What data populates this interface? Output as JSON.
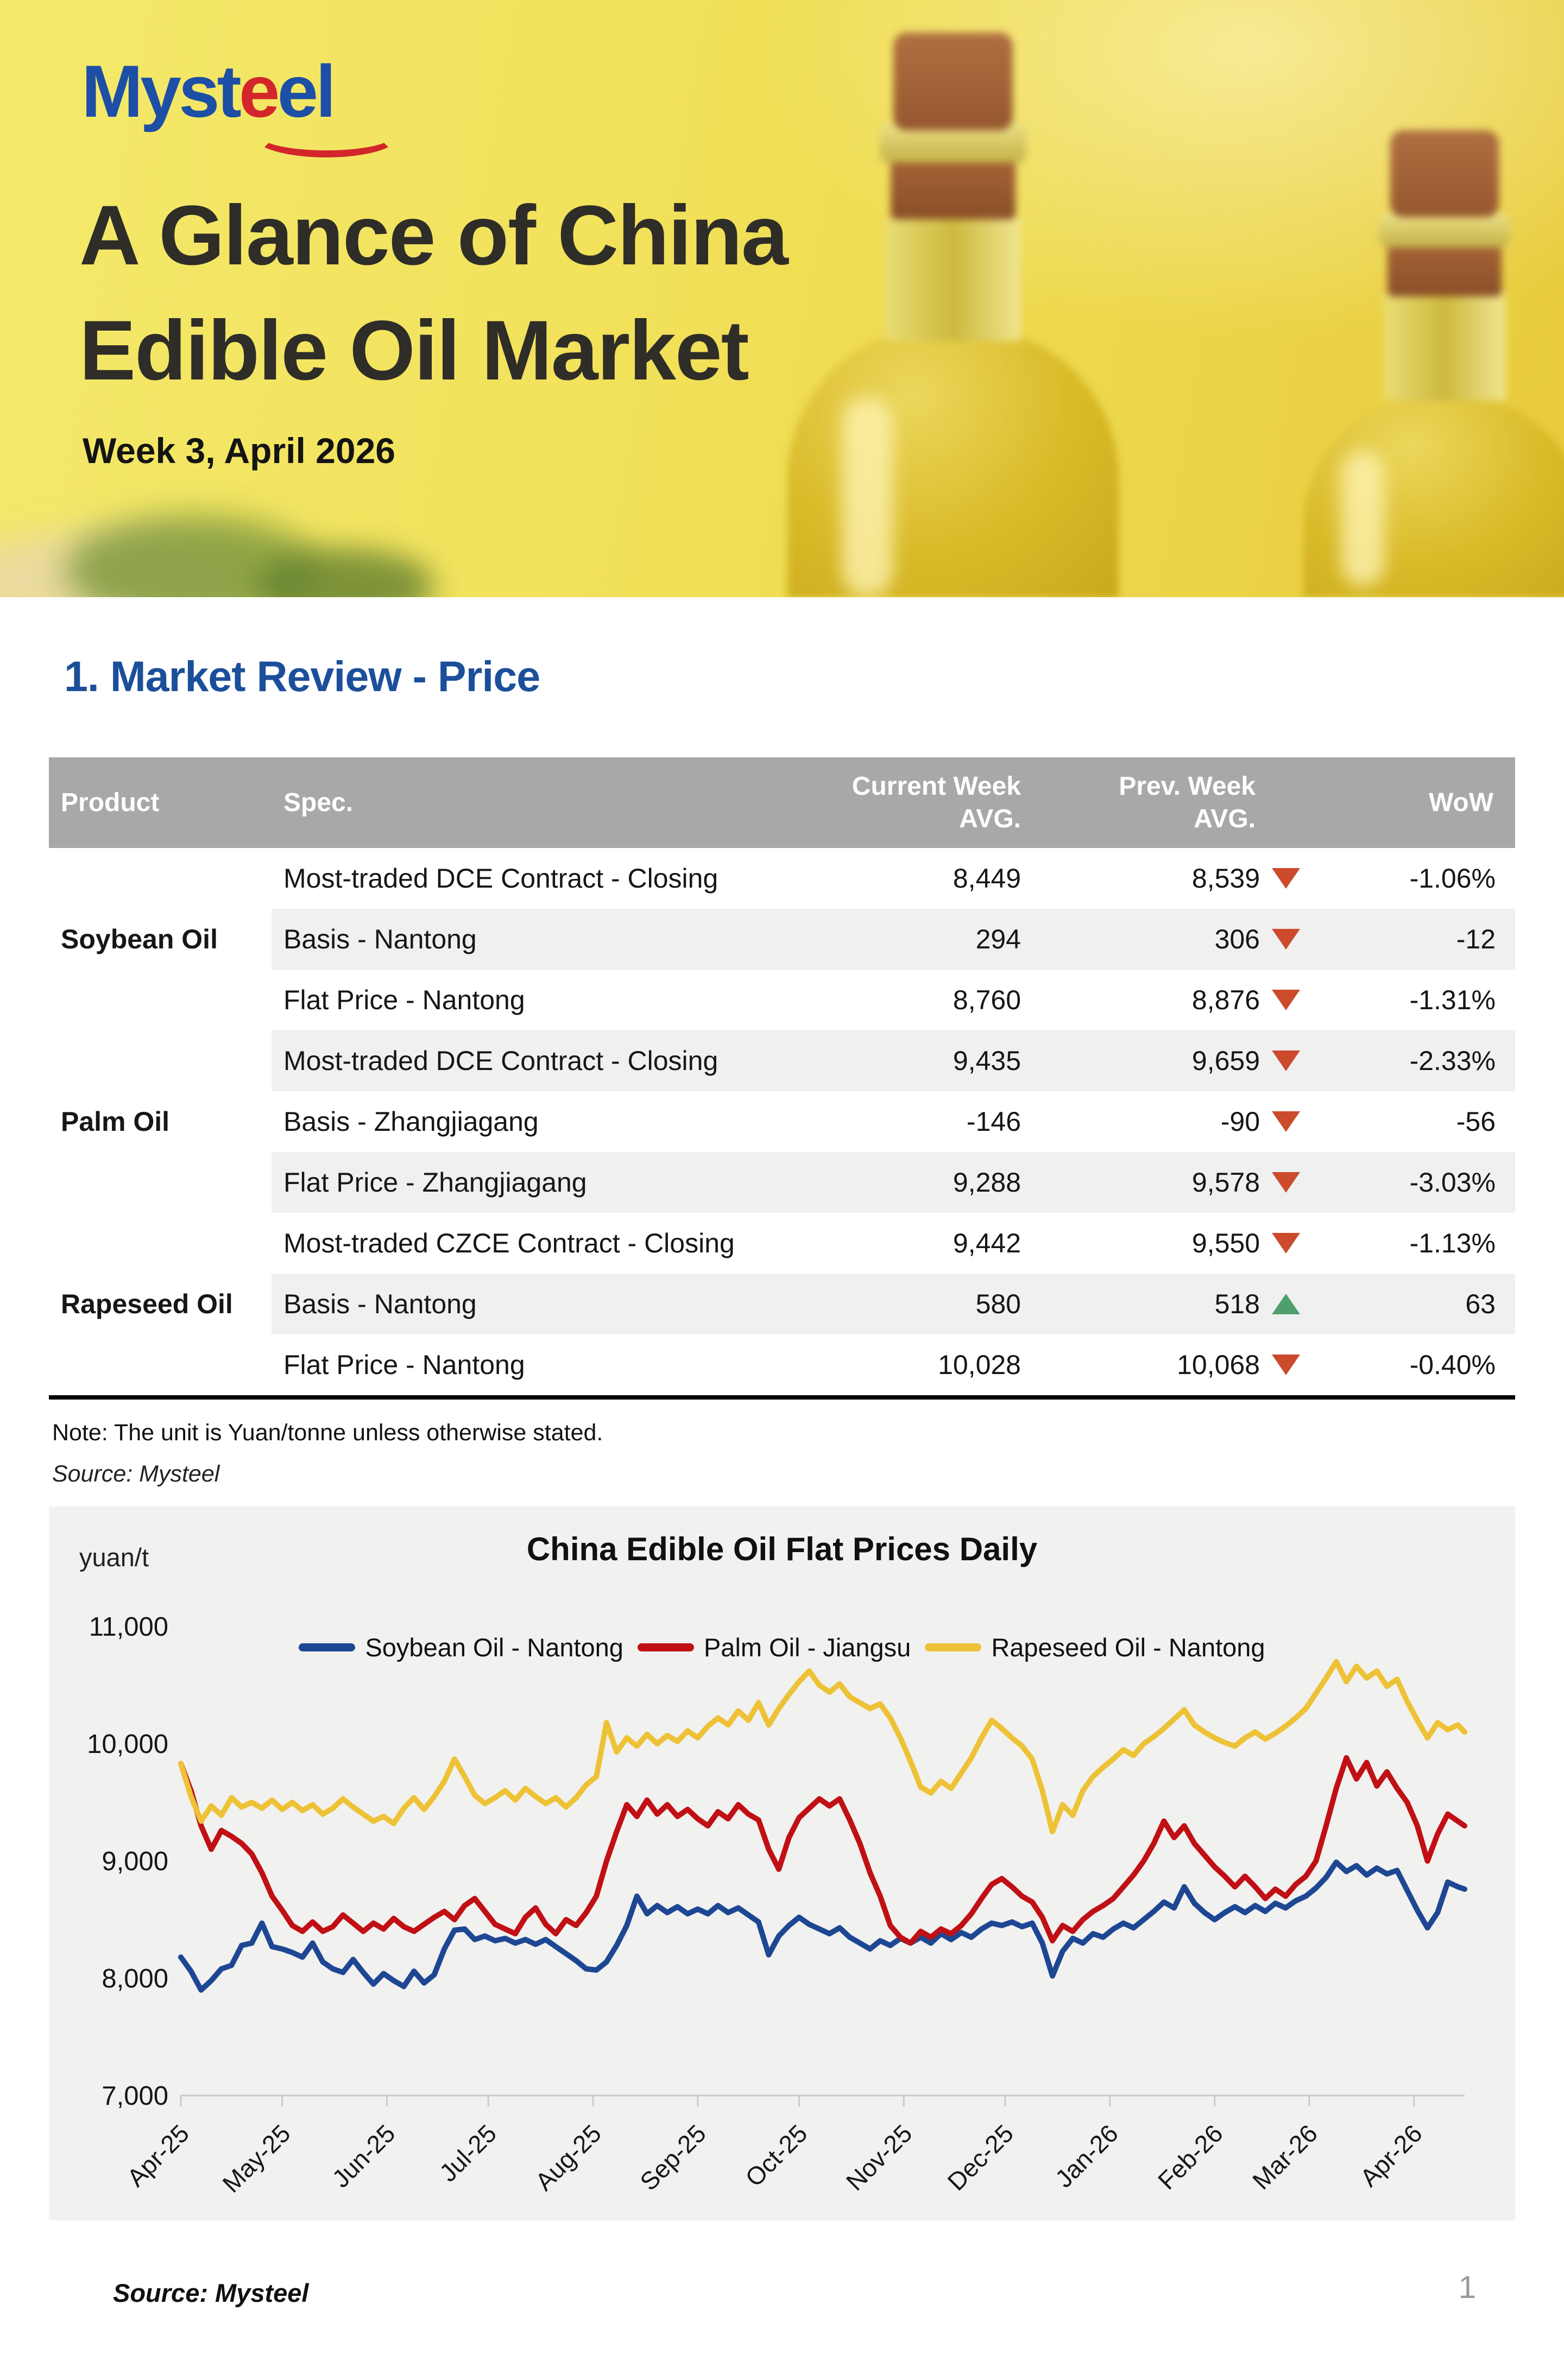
{
  "header": {
    "logo": {
      "part1": "Myst",
      "part2": "e",
      "part3": "el"
    },
    "title_line_1": "A Glance of China",
    "title_line_2": "Edible Oil Market",
    "subtitle": "Week 3, April 2026"
  },
  "section": {
    "title": "1. Market Review - Price"
  },
  "table": {
    "columns": [
      "Product",
      "Spec.",
      "Current Week\nAVG.",
      "Prev. Week\nAVG.",
      "WoW"
    ],
    "groups": [
      {
        "product": "Soybean Oil",
        "rows": [
          {
            "spec": "Most-traded DCE Contract - Closing",
            "current": "8,449",
            "prev": "8,539",
            "dir": "down",
            "wow": "-1.06%"
          },
          {
            "spec": "Basis - Nantong",
            "current": "294",
            "prev": "306",
            "dir": "down",
            "wow": "-12"
          },
          {
            "spec": "Flat Price - Nantong",
            "current": "8,760",
            "prev": "8,876",
            "dir": "down",
            "wow": "-1.31%"
          }
        ]
      },
      {
        "product": "Palm Oil",
        "rows": [
          {
            "spec": "Most-traded DCE Contract - Closing",
            "current": "9,435",
            "prev": "9,659",
            "dir": "down",
            "wow": "-2.33%"
          },
          {
            "spec": "Basis - Zhangjiagang",
            "current": "-146",
            "prev": "-90",
            "dir": "down",
            "wow": "-56"
          },
          {
            "spec": "Flat Price - Zhangjiagang",
            "current": "9,288",
            "prev": "9,578",
            "dir": "down",
            "wow": "-3.03%"
          }
        ]
      },
      {
        "product": "Rapeseed Oil",
        "rows": [
          {
            "spec": "Most-traded CZCE Contract - Closing",
            "current": "9,442",
            "prev": "9,550",
            "dir": "down",
            "wow": "-1.13%"
          },
          {
            "spec": "Basis - Nantong",
            "current": "580",
            "prev": "518",
            "dir": "up",
            "wow": "63"
          },
          {
            "spec": "Flat Price - Nantong",
            "current": "10,028",
            "prev": "10,068",
            "dir": "down",
            "wow": "-0.40%"
          }
        ]
      }
    ],
    "note": "Note: The unit is Yuan/tonne unless otherwise stated.",
    "source": "Source: Mysteel"
  },
  "chart_data": {
    "type": "line",
    "title": "China Edible Oil Flat Prices Daily",
    "unit_label": "yuan/t",
    "xlabel": "",
    "ylabel": "yuan/t",
    "ylim": [
      7000,
      11000
    ],
    "grid": false,
    "legend_position": "top-center",
    "plot_bg": "#f1f1f0",
    "axis_color": "#c9c9c7",
    "y_ticks": [
      {
        "value": 7000,
        "label": "7,000"
      },
      {
        "value": 8000,
        "label": "8,000"
      },
      {
        "value": 9000,
        "label": "9,000"
      },
      {
        "value": 10000,
        "label": "10,000"
      },
      {
        "value": 11000,
        "label": "11,000"
      }
    ],
    "x_max": 380,
    "x_ticks": [
      {
        "day": 0,
        "label": "Apr-25"
      },
      {
        "day": 30,
        "label": "May-25"
      },
      {
        "day": 61,
        "label": "Jun-25"
      },
      {
        "day": 91,
        "label": "Jul-25"
      },
      {
        "day": 122,
        "label": "Aug-25"
      },
      {
        "day": 153,
        "label": "Sep-25"
      },
      {
        "day": 183,
        "label": "Oct-25"
      },
      {
        "day": 214,
        "label": "Nov-25"
      },
      {
        "day": 244,
        "label": "Dec-25"
      },
      {
        "day": 275,
        "label": "Jan-26"
      },
      {
        "day": 306,
        "label": "Feb-26"
      },
      {
        "day": 334,
        "label": "Mar-26"
      },
      {
        "day": 365,
        "label": "Apr-26"
      }
    ],
    "x_days": [
      0,
      3,
      6,
      9,
      12,
      15,
      18,
      21,
      24,
      27,
      30,
      33,
      36,
      39,
      42,
      45,
      48,
      51,
      54,
      57,
      60,
      63,
      66,
      69,
      72,
      75,
      78,
      81,
      84,
      87,
      90,
      93,
      96,
      99,
      102,
      105,
      108,
      111,
      114,
      117,
      120,
      123,
      126,
      129,
      132,
      135,
      138,
      141,
      144,
      147,
      150,
      153,
      156,
      159,
      162,
      165,
      168,
      171,
      174,
      177,
      180,
      183,
      186,
      189,
      192,
      195,
      198,
      201,
      204,
      207,
      210,
      213,
      216,
      219,
      222,
      225,
      228,
      231,
      234,
      237,
      240,
      243,
      246,
      249,
      252,
      255,
      258,
      261,
      264,
      267,
      270,
      273,
      276,
      279,
      282,
      285,
      288,
      291,
      294,
      297,
      300,
      303,
      306,
      309,
      312,
      315,
      318,
      321,
      324,
      327,
      330,
      333,
      336,
      339,
      342,
      345,
      348,
      351,
      354,
      357,
      360,
      363,
      366,
      369,
      372,
      375,
      378,
      380
    ],
    "series": [
      {
        "name": "Soybean Oil - Nantong",
        "color": "#1e4793",
        "values": [
          8180,
          8060,
          7900,
          7980,
          8080,
          8110,
          8280,
          8300,
          8470,
          8270,
          8250,
          8220,
          8180,
          8300,
          8140,
          8080,
          8050,
          8160,
          8050,
          7950,
          8040,
          7980,
          7930,
          8060,
          7960,
          8030,
          8250,
          8410,
          8420,
          8330,
          8360,
          8320,
          8340,
          8300,
          8330,
          8290,
          8330,
          8270,
          8210,
          8150,
          8080,
          8070,
          8140,
          8280,
          8450,
          8700,
          8550,
          8620,
          8560,
          8610,
          8550,
          8590,
          8550,
          8620,
          8560,
          8600,
          8540,
          8480,
          8200,
          8360,
          8450,
          8520,
          8460,
          8420,
          8380,
          8430,
          8350,
          8300,
          8250,
          8320,
          8280,
          8340,
          8300,
          8350,
          8300,
          8380,
          8330,
          8390,
          8350,
          8420,
          8470,
          8450,
          8480,
          8440,
          8470,
          8300,
          8020,
          8230,
          8340,
          8300,
          8380,
          8350,
          8420,
          8470,
          8430,
          8500,
          8570,
          8650,
          8600,
          8780,
          8640,
          8560,
          8500,
          8560,
          8610,
          8560,
          8620,
          8570,
          8640,
          8600,
          8660,
          8700,
          8770,
          8860,
          8990,
          8910,
          8960,
          8880,
          8940,
          8890,
          8920,
          8750,
          8580,
          8430,
          8560,
          8820,
          8780,
          8760
        ]
      },
      {
        "name": "Palm Oil - Jiangsu",
        "color": "#c01015",
        "values": [
          9830,
          9600,
          9300,
          9100,
          9260,
          9210,
          9150,
          9060,
          8900,
          8700,
          8580,
          8450,
          8400,
          8480,
          8400,
          8440,
          8540,
          8470,
          8400,
          8470,
          8420,
          8510,
          8440,
          8400,
          8460,
          8520,
          8570,
          8500,
          8620,
          8680,
          8570,
          8460,
          8420,
          8380,
          8520,
          8600,
          8460,
          8380,
          8500,
          8450,
          8560,
          8700,
          9000,
          9250,
          9480,
          9380,
          9520,
          9400,
          9480,
          9380,
          9440,
          9360,
          9300,
          9420,
          9360,
          9480,
          9400,
          9350,
          9100,
          8930,
          9200,
          9370,
          9450,
          9530,
          9470,
          9530,
          9350,
          9150,
          8900,
          8700,
          8450,
          8350,
          8300,
          8400,
          8350,
          8420,
          8380,
          8450,
          8550,
          8680,
          8800,
          8850,
          8780,
          8700,
          8650,
          8520,
          8320,
          8450,
          8400,
          8500,
          8570,
          8620,
          8680,
          8780,
          8880,
          9000,
          9150,
          9340,
          9200,
          9300,
          9150,
          9050,
          8950,
          8870,
          8780,
          8870,
          8780,
          8680,
          8760,
          8700,
          8800,
          8870,
          9000,
          9300,
          9620,
          9880,
          9700,
          9840,
          9640,
          9760,
          9620,
          9500,
          9300,
          9000,
          9230,
          9400,
          9340,
          9300
        ]
      },
      {
        "name": "Rapeseed Oil - Nantong",
        "color": "#eec236",
        "values": [
          9830,
          9550,
          9340,
          9470,
          9390,
          9540,
          9460,
          9500,
          9450,
          9520,
          9440,
          9500,
          9430,
          9480,
          9400,
          9450,
          9530,
          9460,
          9400,
          9340,
          9380,
          9320,
          9450,
          9540,
          9440,
          9550,
          9680,
          9870,
          9720,
          9560,
          9490,
          9540,
          9600,
          9520,
          9620,
          9550,
          9490,
          9540,
          9460,
          9540,
          9650,
          9720,
          10180,
          9930,
          10050,
          9980,
          10080,
          10000,
          10070,
          10020,
          10110,
          10050,
          10150,
          10220,
          10160,
          10280,
          10200,
          10350,
          10160,
          10300,
          10420,
          10530,
          10620,
          10500,
          10440,
          10510,
          10400,
          10350,
          10300,
          10340,
          10220,
          10050,
          9850,
          9630,
          9580,
          9680,
          9620,
          9750,
          9880,
          10050,
          10200,
          10130,
          10050,
          9980,
          9870,
          9600,
          9250,
          9480,
          9390,
          9600,
          9720,
          9800,
          9870,
          9950,
          9900,
          10000,
          10060,
          10130,
          10210,
          10290,
          10160,
          10100,
          10050,
          10010,
          9980,
          10050,
          10100,
          10040,
          10090,
          10150,
          10220,
          10300,
          10430,
          10560,
          10700,
          10530,
          10660,
          10560,
          10620,
          10490,
          10550,
          10360,
          10200,
          10050,
          10180,
          10120,
          10160,
          10100
        ]
      }
    ]
  },
  "footer": {
    "source": "Source: Mysteel",
    "page_number": "1"
  }
}
